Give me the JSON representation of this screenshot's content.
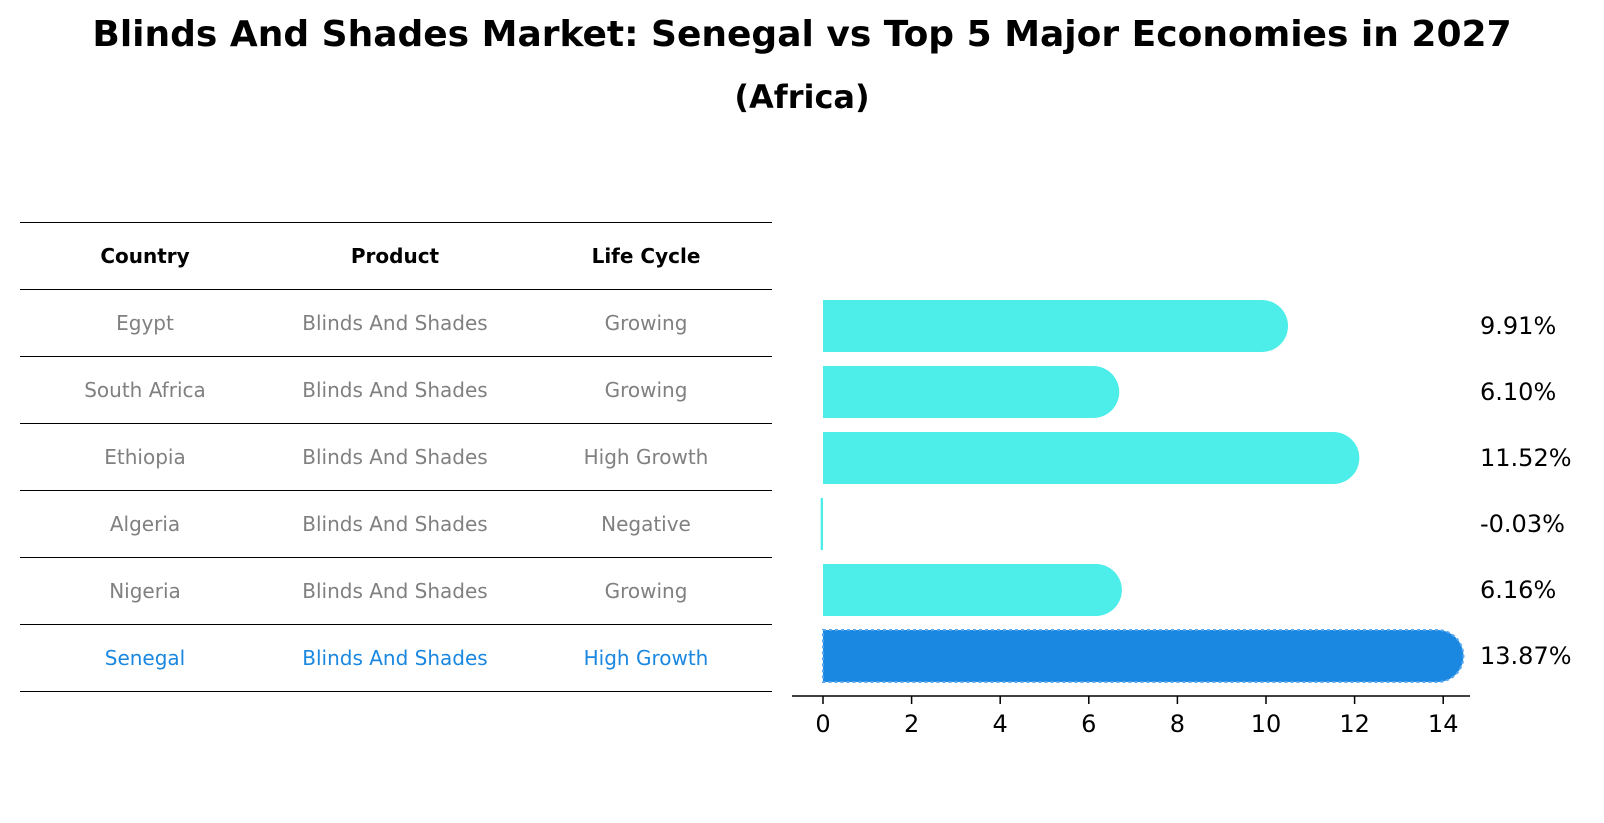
{
  "title": "Blinds And Shades Market: Senegal vs Top 5 Major Economies in 2027",
  "subtitle": "(Africa)",
  "table": {
    "headers": [
      "Country",
      "Product",
      "Life Cycle"
    ],
    "rows": [
      {
        "country": "Egypt",
        "product": "Blinds And Shades",
        "life_cycle": "Growing"
      },
      {
        "country": "South Africa",
        "product": "Blinds And Shades",
        "life_cycle": "Growing"
      },
      {
        "country": "Ethiopia",
        "product": "Blinds And Shades",
        "life_cycle": "High Growth"
      },
      {
        "country": "Algeria",
        "product": "Blinds And Shades",
        "life_cycle": "Negative"
      },
      {
        "country": "Nigeria",
        "product": "Blinds And Shades",
        "life_cycle": "Growing"
      },
      {
        "country": "Senegal",
        "product": "Blinds And Shades",
        "life_cycle": "High Growth"
      }
    ]
  },
  "colors": {
    "bar": "#4deeea",
    "highlight": "#1a87e0",
    "muted_text": "#808080"
  },
  "chart_data": {
    "type": "bar",
    "orientation": "horizontal",
    "categories": [
      "Egypt",
      "South Africa",
      "Ethiopia",
      "Algeria",
      "Nigeria",
      "Senegal"
    ],
    "values": [
      9.91,
      6.1,
      11.52,
      -0.03,
      6.16,
      13.87
    ],
    "value_labels": [
      "9.91%",
      "6.10%",
      "11.52%",
      "-0.03%",
      "6.16%",
      "13.87%"
    ],
    "highlight_category": "Senegal",
    "xlim": [
      -0.7,
      14.6
    ],
    "xticks": [
      0,
      2,
      4,
      6,
      8,
      10,
      12,
      14
    ],
    "grid": false
  }
}
